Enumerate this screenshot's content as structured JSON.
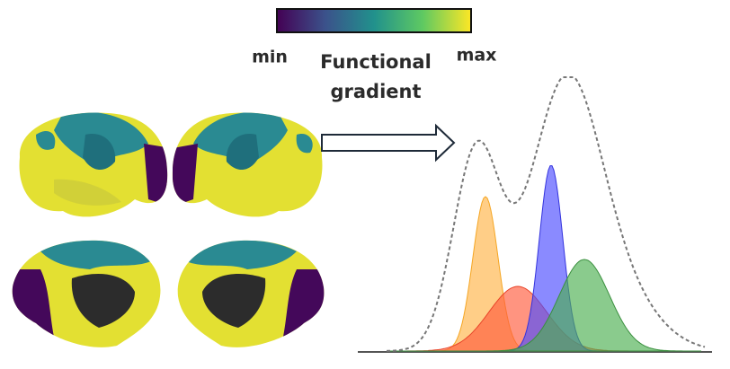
{
  "colorbar": {
    "min_label": "min",
    "max_label": "max",
    "title": [
      "Functional",
      "gradient"
    ]
  }
}
